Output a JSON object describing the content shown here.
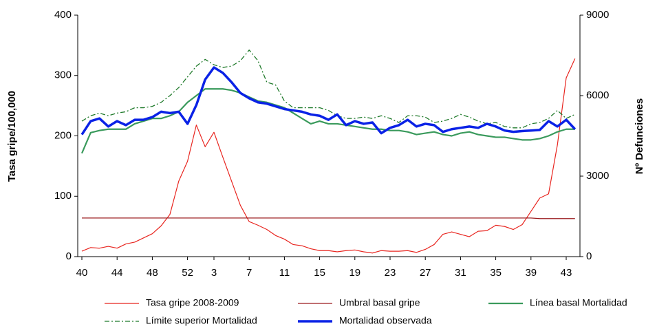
{
  "chart_data": {
    "type": "line",
    "y_label": "Tasa gripe/100,000",
    "y2_label": "Nº Defunciones",
    "categories": [
      "40",
      null,
      null,
      null,
      "44",
      null,
      null,
      null,
      "48",
      null,
      null,
      null,
      "52",
      null,
      null,
      "3",
      null,
      null,
      null,
      "7",
      null,
      null,
      null,
      "11",
      null,
      null,
      null,
      "15",
      null,
      null,
      null,
      "19",
      null,
      null,
      null,
      "23",
      null,
      null,
      null,
      "27",
      null,
      null,
      null,
      "31",
      null,
      null,
      null,
      "35",
      null,
      null,
      null,
      "39",
      null,
      null,
      null,
      "43",
      null
    ],
    "ylim": [
      0,
      400
    ],
    "yticks": [
      0,
      100,
      200,
      300,
      400
    ],
    "y2lim": [
      0,
      9000
    ],
    "y2ticks": [
      0,
      3000,
      6000,
      9000
    ],
    "legend": "bottom",
    "series": [
      {
        "name": "Tasa gripe 2008-2009",
        "color": "#e8251f",
        "linewidth": 1.2,
        "linestyle": "solid",
        "axis": "y",
        "values": [
          9,
          15,
          14,
          17,
          14,
          21,
          24,
          31,
          38,
          51,
          70,
          125,
          158,
          218,
          182,
          206,
          165,
          125,
          85,
          58,
          52,
          45,
          35,
          29,
          20,
          18,
          13,
          10,
          10,
          8,
          10,
          11,
          8,
          6,
          10,
          9,
          9,
          10,
          7,
          12,
          20,
          37,
          41,
          37,
          33,
          42,
          43,
          52,
          50,
          45,
          53,
          75,
          97,
          104,
          185,
          296,
          328
        ]
      },
      {
        "name": "Umbral basal gripe",
        "color": "#9b1b1f",
        "linewidth": 1.2,
        "linestyle": "solid",
        "axis": "y",
        "values": [
          64,
          64,
          64,
          64,
          64,
          64,
          64,
          64,
          64,
          64,
          64,
          64,
          64,
          64,
          64,
          64,
          64,
          64,
          64,
          64,
          64,
          64,
          64,
          64,
          64,
          64,
          64,
          64,
          64,
          64,
          64,
          64,
          64,
          64,
          64,
          64,
          64,
          64,
          64,
          64,
          64,
          64,
          64,
          64,
          64,
          64,
          64,
          64,
          64,
          64,
          64,
          64,
          63,
          63,
          63,
          63,
          63
        ]
      },
      {
        "name": "Línea basal Mortalidad",
        "color": "#3a9a5c",
        "linewidth": 2.2,
        "linestyle": "solid",
        "axis": "y2",
        "values": [
          3850,
          4620,
          4700,
          4750,
          4750,
          4750,
          4950,
          5050,
          5150,
          5150,
          5250,
          5400,
          5750,
          6000,
          6250,
          6250,
          6250,
          6200,
          6100,
          5950,
          5800,
          5750,
          5650,
          5550,
          5350,
          5150,
          4950,
          5050,
          4950,
          4950,
          4900,
          4850,
          4800,
          4750,
          4750,
          4700,
          4700,
          4650,
          4550,
          4600,
          4650,
          4550,
          4500,
          4600,
          4650,
          4550,
          4500,
          4450,
          4450,
          4400,
          4350,
          4350,
          4400,
          4500,
          4650,
          4750,
          4750
        ]
      },
      {
        "name": "Límite superior Mortalidad",
        "color": "#1f7a2a",
        "linewidth": 1.3,
        "linestyle": "dashdot",
        "axis": "y2",
        "values": [
          5050,
          5250,
          5350,
          5250,
          5350,
          5400,
          5550,
          5550,
          5600,
          5750,
          6000,
          6300,
          6700,
          7100,
          7350,
          7150,
          7050,
          7100,
          7300,
          7700,
          7300,
          6500,
          6400,
          5800,
          5550,
          5550,
          5550,
          5550,
          5450,
          5250,
          5150,
          5150,
          5200,
          5150,
          5250,
          5150,
          5000,
          5250,
          5250,
          5200,
          5000,
          5050,
          5150,
          5300,
          5200,
          5050,
          4950,
          5000,
          4850,
          4800,
          4800,
          4950,
          5000,
          5150,
          5450,
          5150,
          5300
        ]
      },
      {
        "name": "Mortalidad observada",
        "color": "#0a22e6",
        "linewidth": 3.5,
        "linestyle": "solid",
        "axis": "y2",
        "values": [
          4550,
          5050,
          5150,
          4850,
          5050,
          4900,
          5100,
          5100,
          5200,
          5400,
          5350,
          5400,
          4950,
          5650,
          6600,
          7050,
          6850,
          6500,
          6100,
          5900,
          5750,
          5700,
          5600,
          5500,
          5450,
          5400,
          5300,
          5250,
          5100,
          5300,
          4900,
          5050,
          4950,
          5000,
          4600,
          4800,
          4900,
          5100,
          4850,
          4950,
          4900,
          4650,
          4750,
          4800,
          4850,
          4800,
          4950,
          4850,
          4700,
          4650,
          4680,
          4700,
          4720,
          5050,
          4850,
          5100,
          4750
        ]
      }
    ]
  }
}
